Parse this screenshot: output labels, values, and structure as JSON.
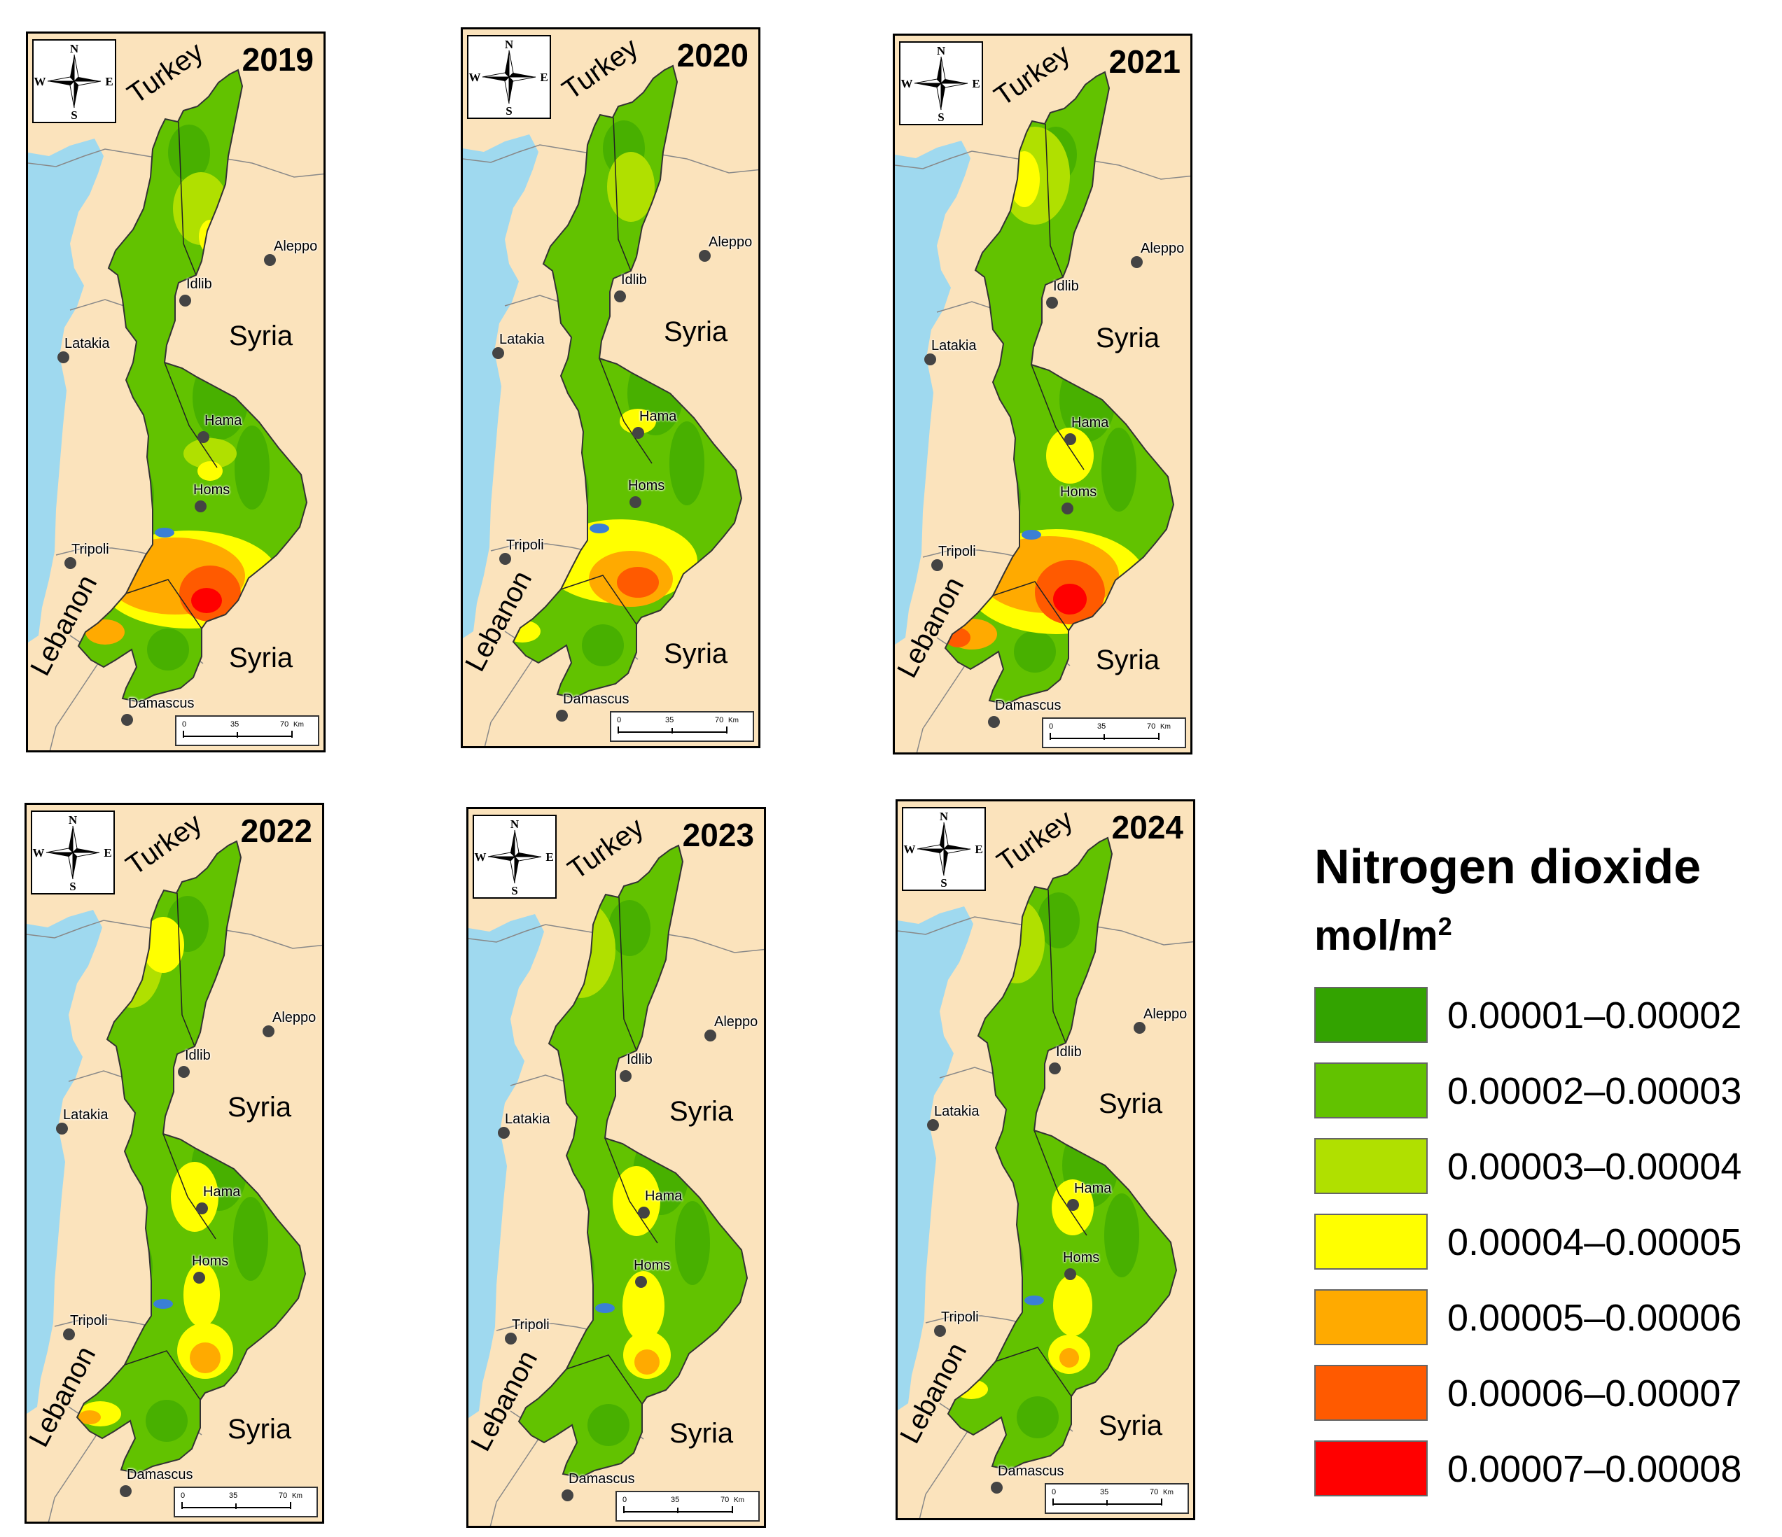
{
  "maps": [
    {
      "year": "2019"
    },
    {
      "year": "2020"
    },
    {
      "year": "2021"
    },
    {
      "year": "2022"
    },
    {
      "year": "2023"
    },
    {
      "year": "2024"
    }
  ],
  "compass_labels": {
    "n": "N",
    "s": "S",
    "e": "E",
    "w": "W"
  },
  "countries": {
    "turkey": "Turkey",
    "syria": "Syria",
    "lebanon": "Lebanon"
  },
  "cities": {
    "aleppo": "Aleppo",
    "idlib": "Idlib",
    "latakia": "Latakia",
    "hama": "Hama",
    "homs": "Homs",
    "tripoli": "Tripoli",
    "damascus": "Damascus"
  },
  "scale_bar": {
    "tick0": "0",
    "tick1": "35",
    "tick2": "70",
    "unit": "Km"
  },
  "legend": {
    "title": "Nitrogen dioxide",
    "unit": "mol/m",
    "unit_sup": "2",
    "classes": [
      {
        "label": "0.00001–0.00002",
        "color": "#33a300"
      },
      {
        "label": "0.00002–0.00003",
        "color": "#62c200"
      },
      {
        "label": "0.00003–0.00004",
        "color": "#b0e000"
      },
      {
        "label": "0.00004–0.00005",
        "color": "#ffff00"
      },
      {
        "label": "0.00005–0.00006",
        "color": "#ffaa00"
      },
      {
        "label": "0.00006–0.00007",
        "color": "#ff5a00"
      },
      {
        "label": "0.00007–0.00008",
        "color": "#ff0000"
      }
    ]
  }
}
